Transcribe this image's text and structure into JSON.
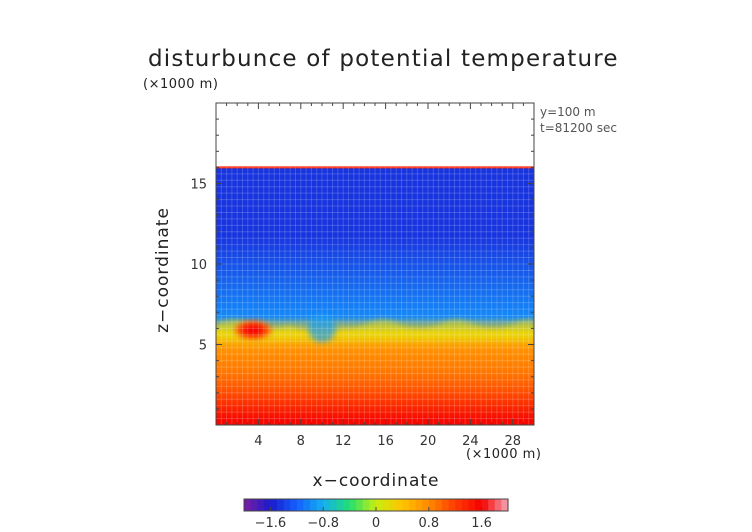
{
  "chart_data": {
    "type": "heatmap",
    "title": "disturbunce of potential temperature",
    "y_unit": "(×1000 m)",
    "x_unit": "(×1000 m)",
    "info": [
      "y=100 m",
      "t=81200 sec"
    ],
    "xlabel": "x−coordinate",
    "ylabel": "z−coordinate",
    "xlim": [
      0,
      30
    ],
    "ylim": [
      0,
      20
    ],
    "x_ticks": [
      4,
      8,
      12,
      16,
      20,
      24,
      28
    ],
    "y_ticks": [
      5,
      10,
      15
    ],
    "tick_labels_x": [
      "4",
      "8",
      "12",
      "16",
      "20",
      "24",
      "28"
    ],
    "tick_labels_y": [
      "5",
      "10",
      "15"
    ],
    "colorbar": {
      "range": [
        -2.0,
        2.0
      ],
      "ticks": [
        -1.6,
        -0.8,
        0,
        0.8,
        1.6
      ],
      "tick_labels": [
        "−1.6",
        "−0.8",
        "0",
        "0.8",
        "1.6"
      ],
      "colors": [
        "#7a1fa2",
        "#1a1acc",
        "#1460ff",
        "#14b0f0",
        "#20e070",
        "#c8ee10",
        "#ffc400",
        "#ff8a00",
        "#ff3c00",
        "#f50000",
        "#f4a8b6"
      ]
    },
    "field_top_z": 16,
    "layers": [
      {
        "z": [
          0.0,
          0.6
        ],
        "value": 1.55
      },
      {
        "z": [
          0.6,
          1.6
        ],
        "value": 1.35
      },
      {
        "z": [
          1.6,
          2.6
        ],
        "value": 1.1
      },
      {
        "z": [
          2.6,
          4.0
        ],
        "value": 0.9
      },
      {
        "z": [
          4.0,
          5.4
        ],
        "value": 0.75
      },
      {
        "z": [
          5.4,
          6.0
        ],
        "value": 0.3
      },
      {
        "z": [
          6.0,
          7.5
        ],
        "value": -1.0
      },
      {
        "z": [
          7.5,
          16.0
        ],
        "value": -1.45
      }
    ],
    "features": [
      {
        "kind": "warm-blob",
        "x": 3.5,
        "z": 5.9,
        "value": 1.6
      },
      {
        "kind": "cold-anomaly",
        "x": 10.0,
        "z": 6.0,
        "value": -0.9
      },
      {
        "kind": "top-rim",
        "z": 16.0,
        "value": 1.4
      }
    ]
  }
}
